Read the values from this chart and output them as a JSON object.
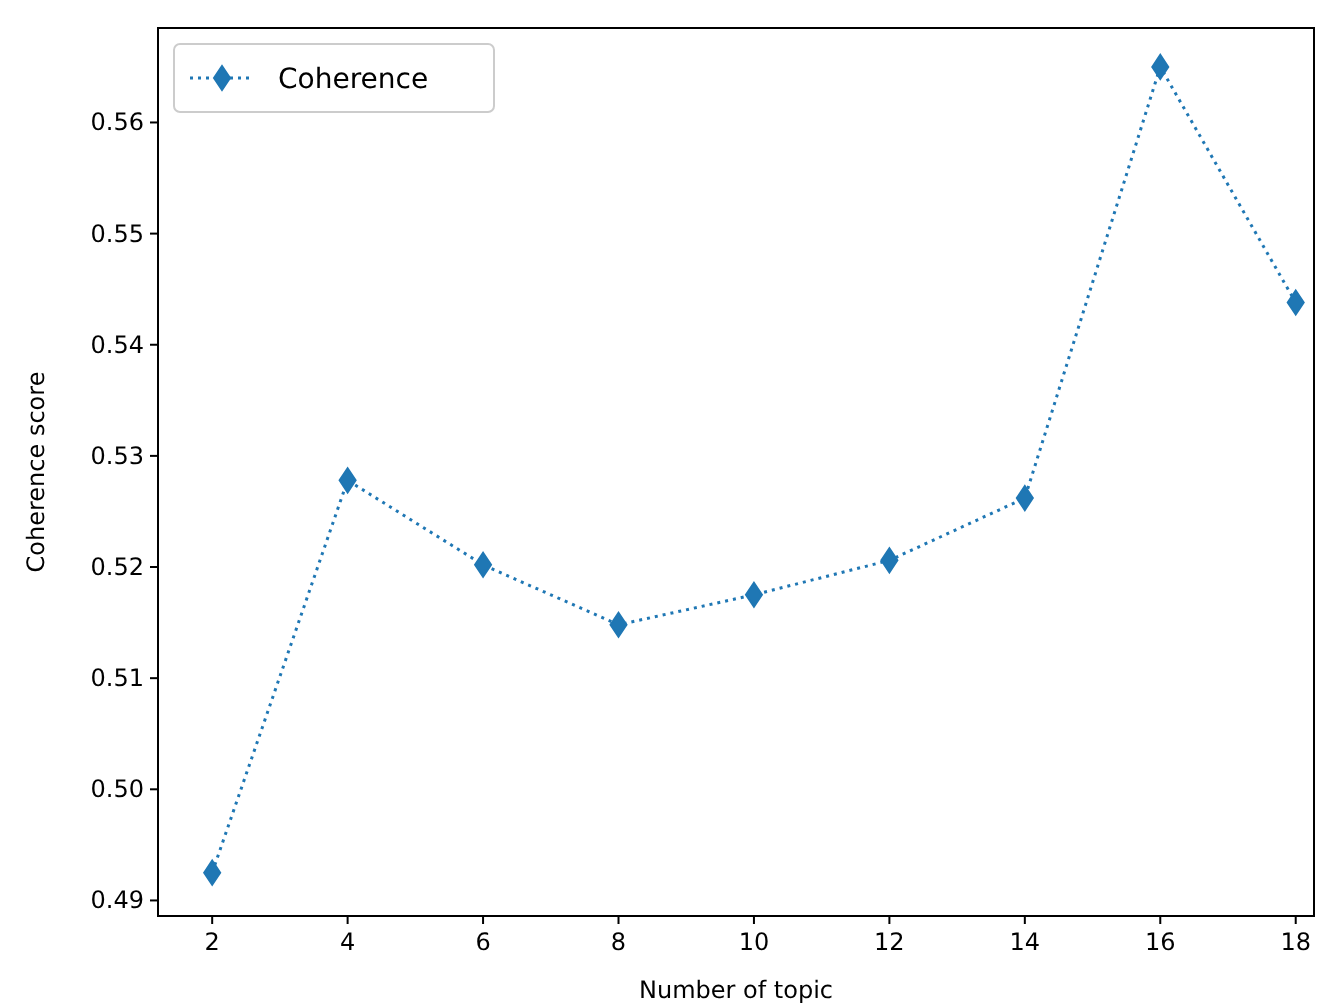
{
  "chart_data": {
    "type": "line",
    "xlabel": "Number of topic",
    "ylabel": "Coherence score",
    "x": [
      2,
      4,
      6,
      8,
      10,
      12,
      14,
      16,
      18
    ],
    "series": [
      {
        "name": "Coherence",
        "color": "#1f77b4",
        "values": [
          0.4925,
          0.5278,
          0.5202,
          0.5148,
          0.5175,
          0.5206,
          0.5262,
          0.565,
          0.5438
        ]
      }
    ],
    "xlim": [
      1.2,
      18.27
    ],
    "xticks": [
      2,
      4,
      6,
      8,
      10,
      12,
      14,
      16,
      18
    ],
    "ylim": [
      0.4886,
      0.5685
    ],
    "yticks": [
      {
        "value": 0.49,
        "label": "0.49"
      },
      {
        "value": 0.5,
        "label": "0.50"
      },
      {
        "value": 0.51,
        "label": "0.51"
      },
      {
        "value": 0.52,
        "label": "0.52"
      },
      {
        "value": 0.53,
        "label": "0.53"
      },
      {
        "value": 0.54,
        "label": "0.54"
      },
      {
        "value": 0.55,
        "label": "0.55"
      },
      {
        "value": 0.56,
        "label": "0.56"
      }
    ],
    "legend": "top left",
    "marker": "diamond",
    "line_style": "dotted",
    "grid": false
  }
}
